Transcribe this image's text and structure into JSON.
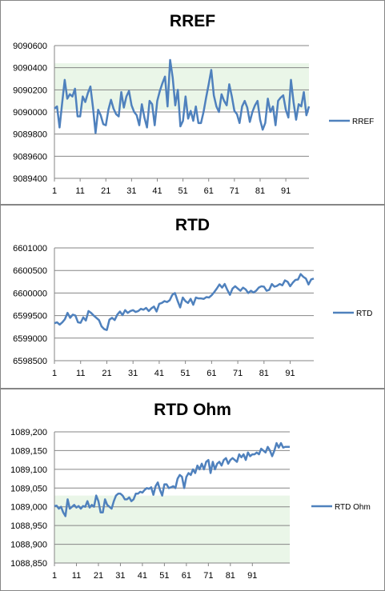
{
  "colors": {
    "series": "#4f81bd",
    "grid": "#868686",
    "band": "#eaf6e8",
    "axis": "#868686"
  },
  "chart_data": [
    {
      "type": "line",
      "title": "RREF",
      "x_tick_labels": [
        "1",
        "11",
        "21",
        "31",
        "41",
        "51",
        "61",
        "71",
        "81",
        "91"
      ],
      "y_ticks": [
        9089400,
        9089600,
        9089800,
        9090000,
        9090200,
        9090400,
        9090600
      ],
      "y_tick_labels": [
        "9089400",
        "9089600",
        "9089800",
        "9090000",
        "9090200",
        "9090400",
        "9090600"
      ],
      "ylim": [
        9089400,
        9090600
      ],
      "grid": true,
      "legend": "right",
      "series": [
        {
          "name": "RREF",
          "values": [
            9090030,
            9090050,
            9089860,
            9090080,
            9090290,
            9090120,
            9090160,
            9090140,
            9090210,
            9089960,
            9089960,
            9090140,
            9090090,
            9090170,
            9090230,
            9090040,
            9089810,
            9090020,
            9089970,
            9089890,
            9089880,
            9090020,
            9090110,
            9090030,
            9089980,
            9089960,
            9090180,
            9090040,
            9090140,
            9090190,
            9090060,
            9090000,
            9089970,
            9089880,
            9090070,
            9089950,
            9089860,
            9090100,
            9090070,
            9089880,
            9090100,
            9090190,
            9090260,
            9090320,
            9090050,
            9090470,
            9090310,
            9090060,
            9090200,
            9089870,
            9089920,
            9090140,
            9089940,
            9090010,
            9089920,
            9090050,
            9089900,
            9089900,
            9090000,
            9090130,
            9090250,
            9090380,
            9090150,
            9090050,
            9090000,
            9090160,
            9090100,
            9090060,
            9090250,
            9090140,
            9090010,
            9089980,
            9089900,
            9090050,
            9090100,
            9090040,
            9089910,
            9090000,
            9090060,
            9090100,
            9089930,
            9089840,
            9089900,
            9090120,
            9090000,
            9090050,
            9089880,
            9090100,
            9090130,
            9090150,
            9090020,
            9089950,
            9090290,
            9090090,
            9089930,
            9090070,
            9090050,
            9090180,
            9089970,
            9090050
          ]
        }
      ]
    },
    {
      "type": "line",
      "title": "RTD",
      "x_tick_labels": [
        "1",
        "11",
        "21",
        "31",
        "41",
        "51",
        "61",
        "71",
        "81",
        "91"
      ],
      "y_ticks": [
        6598500,
        6599000,
        6599500,
        6600000,
        6600500,
        6601000
      ],
      "y_tick_labels": [
        "6598500",
        "6599000",
        "6599500",
        "6600000",
        "6600500",
        "6601000"
      ],
      "ylim": [
        6598500,
        6601000
      ],
      "grid": true,
      "legend": "right",
      "series": [
        {
          "name": "RTD",
          "values": [
            6599330,
            6599350,
            6599300,
            6599350,
            6599420,
            6599560,
            6599450,
            6599520,
            6599500,
            6599350,
            6599340,
            6599460,
            6599390,
            6599600,
            6599560,
            6599500,
            6599450,
            6599400,
            6599260,
            6599200,
            6599180,
            6599410,
            6599450,
            6599400,
            6599520,
            6599590,
            6599510,
            6599620,
            6599560,
            6599600,
            6599620,
            6599580,
            6599600,
            6599650,
            6599630,
            6599670,
            6599600,
            6599660,
            6599700,
            6599590,
            6599760,
            6599780,
            6599820,
            6599800,
            6599840,
            6599960,
            6600000,
            6599830,
            6599680,
            6599900,
            6599820,
            6599780,
            6599870,
            6599740,
            6599900,
            6599880,
            6599880,
            6599870,
            6599910,
            6599900,
            6599950,
            6600020,
            6600100,
            6600190,
            6600120,
            6600200,
            6600070,
            6599960,
            6600100,
            6600150,
            6600100,
            6600050,
            6600120,
            6600080,
            6600000,
            6600050,
            6600010,
            6600050,
            6600120,
            6600150,
            6600140,
            6600050,
            6600070,
            6600200,
            6600140,
            6600160,
            6600200,
            6600170,
            6600280,
            6600250,
            6600150,
            6600230,
            6600290,
            6600300,
            6600420,
            6600360,
            6600320,
            6600190,
            6600300,
            6600320
          ]
        }
      ]
    },
    {
      "type": "line",
      "title": "RTD Ohm",
      "x_tick_labels": [
        "1",
        "11",
        "21",
        "31",
        "41",
        "51",
        "61",
        "71",
        "81",
        "91"
      ],
      "y_ticks": [
        1088.85,
        1088.9,
        1088.95,
        1089.0,
        1089.05,
        1089.1,
        1089.15,
        1089.2
      ],
      "y_tick_labels": [
        "1088,850",
        "1088,900",
        "1088,950",
        "1089,000",
        "1089,050",
        "1089,100",
        "1089,150",
        "1089,200"
      ],
      "ylim": [
        1088.85,
        1089.2
      ],
      "grid": true,
      "legend": "right",
      "series": [
        {
          "name": "RTD Ohm",
          "values": [
            1089.002,
            1089.003,
            1088.995,
            1089.0,
            1088.985,
            1088.975,
            1089.02,
            1088.995,
            1089.0,
            1089.005,
            1088.998,
            1089.002,
            1088.995,
            1089.002,
            1089.0,
            1089.015,
            1088.998,
            1089.005,
            1089.0,
            1089.03,
            1089.015,
            1088.985,
            1088.985,
            1089.02,
            1089.005,
            1089.0,
            1088.995,
            1089.015,
            1089.03,
            1089.035,
            1089.035,
            1089.03,
            1089.02,
            1089.02,
            1089.025,
            1089.015,
            1089.02,
            1089.035,
            1089.035,
            1089.04,
            1089.038,
            1089.045,
            1089.05,
            1089.048,
            1089.052,
            1089.032,
            1089.055,
            1089.065,
            1089.045,
            1089.03,
            1089.06,
            1089.06,
            1089.05,
            1089.052,
            1089.055,
            1089.05,
            1089.075,
            1089.085,
            1089.08,
            1089.05,
            1089.08,
            1089.09,
            1089.085,
            1089.1,
            1089.09,
            1089.11,
            1089.1,
            1089.115,
            1089.1,
            1089.12,
            1089.125,
            1089.09,
            1089.12,
            1089.1,
            1089.115,
            1089.12,
            1089.11,
            1089.125,
            1089.13,
            1089.115,
            1089.125,
            1089.13,
            1089.125,
            1089.12,
            1089.14,
            1089.132,
            1089.14,
            1089.125,
            1089.145,
            1089.135,
            1089.14,
            1089.14,
            1089.145,
            1089.14,
            1089.155,
            1089.15,
            1089.145,
            1089.16,
            1089.15,
            1089.135,
            1089.15,
            1089.17,
            1089.158,
            1089.17,
            1089.158,
            1089.16,
            1089.16,
            1089.16
          ]
        }
      ]
    }
  ]
}
